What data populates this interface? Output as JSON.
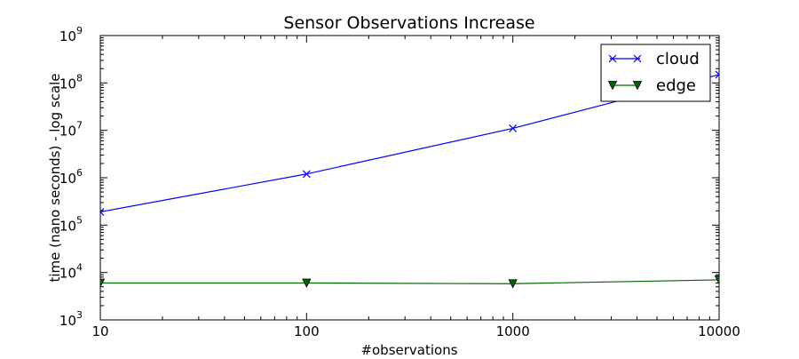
{
  "chart_data": {
    "type": "line",
    "title": "Sensor Observations Increase",
    "xlabel": "#observations",
    "ylabel": "time (nano seconds) - log scale",
    "x_scale": "log",
    "y_scale": "log",
    "xlim": [
      10,
      10000
    ],
    "ylim": [
      1000,
      1000000000
    ],
    "x_ticks": [
      {
        "value": 10,
        "label": "10"
      },
      {
        "value": 100,
        "label": "100"
      },
      {
        "value": 1000,
        "label": "1000"
      },
      {
        "value": 10000,
        "label": "10000"
      }
    ],
    "y_ticks": [
      {
        "value": 1000,
        "base": "10",
        "exp": "3"
      },
      {
        "value": 10000,
        "base": "10",
        "exp": "4"
      },
      {
        "value": 100000,
        "base": "10",
        "exp": "5"
      },
      {
        "value": 1000000,
        "base": "10",
        "exp": "6"
      },
      {
        "value": 10000000,
        "base": "10",
        "exp": "7"
      },
      {
        "value": 100000000,
        "base": "10",
        "exp": "8"
      },
      {
        "value": 1000000000,
        "base": "10",
        "exp": "9"
      }
    ],
    "x": [
      10,
      100,
      1000,
      10000
    ],
    "series": [
      {
        "name": "cloud",
        "color": "#0000ff",
        "marker": "x",
        "values": [
          190000,
          1200000,
          11000000,
          150000000
        ]
      },
      {
        "name": "edge",
        "color": "#006400",
        "marker": "triangle-down",
        "values": [
          6000,
          6000,
          5800,
          7000
        ]
      }
    ],
    "grid": false,
    "legend_position": "top-right"
  }
}
